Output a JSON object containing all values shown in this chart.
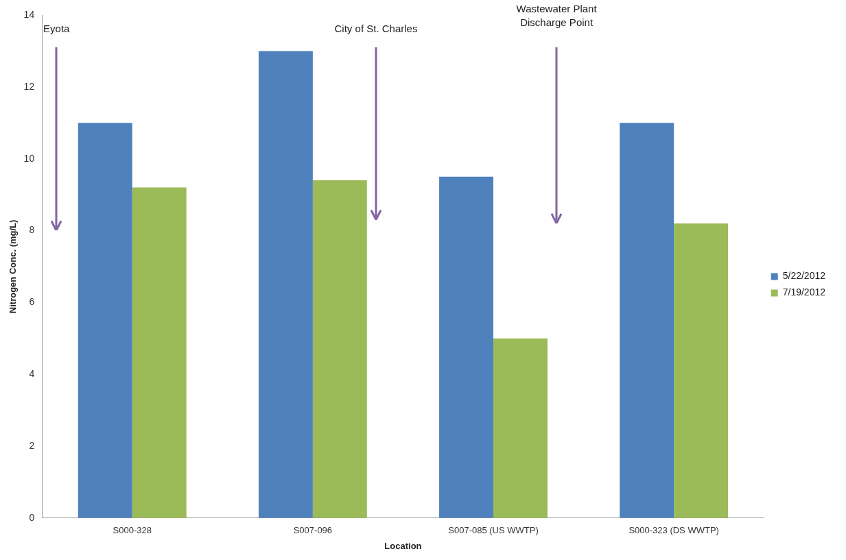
{
  "chart_data": {
    "type": "bar",
    "xlabel": "Location",
    "ylabel": "Nitrogen Conc. (mg/L)",
    "categories": [
      "S000-328",
      "S007-096",
      "S007-085 (US WWTP)",
      "S000-323 (DS WWTP)"
    ],
    "series": [
      {
        "name": "5/22/2012",
        "color": "#4f81bd",
        "values": [
          11,
          13,
          9.5,
          11
        ]
      },
      {
        "name": "7/19/2012",
        "color": "#9bbb59",
        "values": [
          9.2,
          9.4,
          5.0,
          8.2
        ]
      }
    ],
    "ylim": [
      0,
      14
    ],
    "yticks": [
      0,
      2,
      4,
      6,
      8,
      10,
      12,
      14
    ],
    "grid": false,
    "legend": "right",
    "annotations": [
      "Eyota",
      "City of St. Charles",
      "Wastewater Plant Discharge Point"
    ]
  }
}
